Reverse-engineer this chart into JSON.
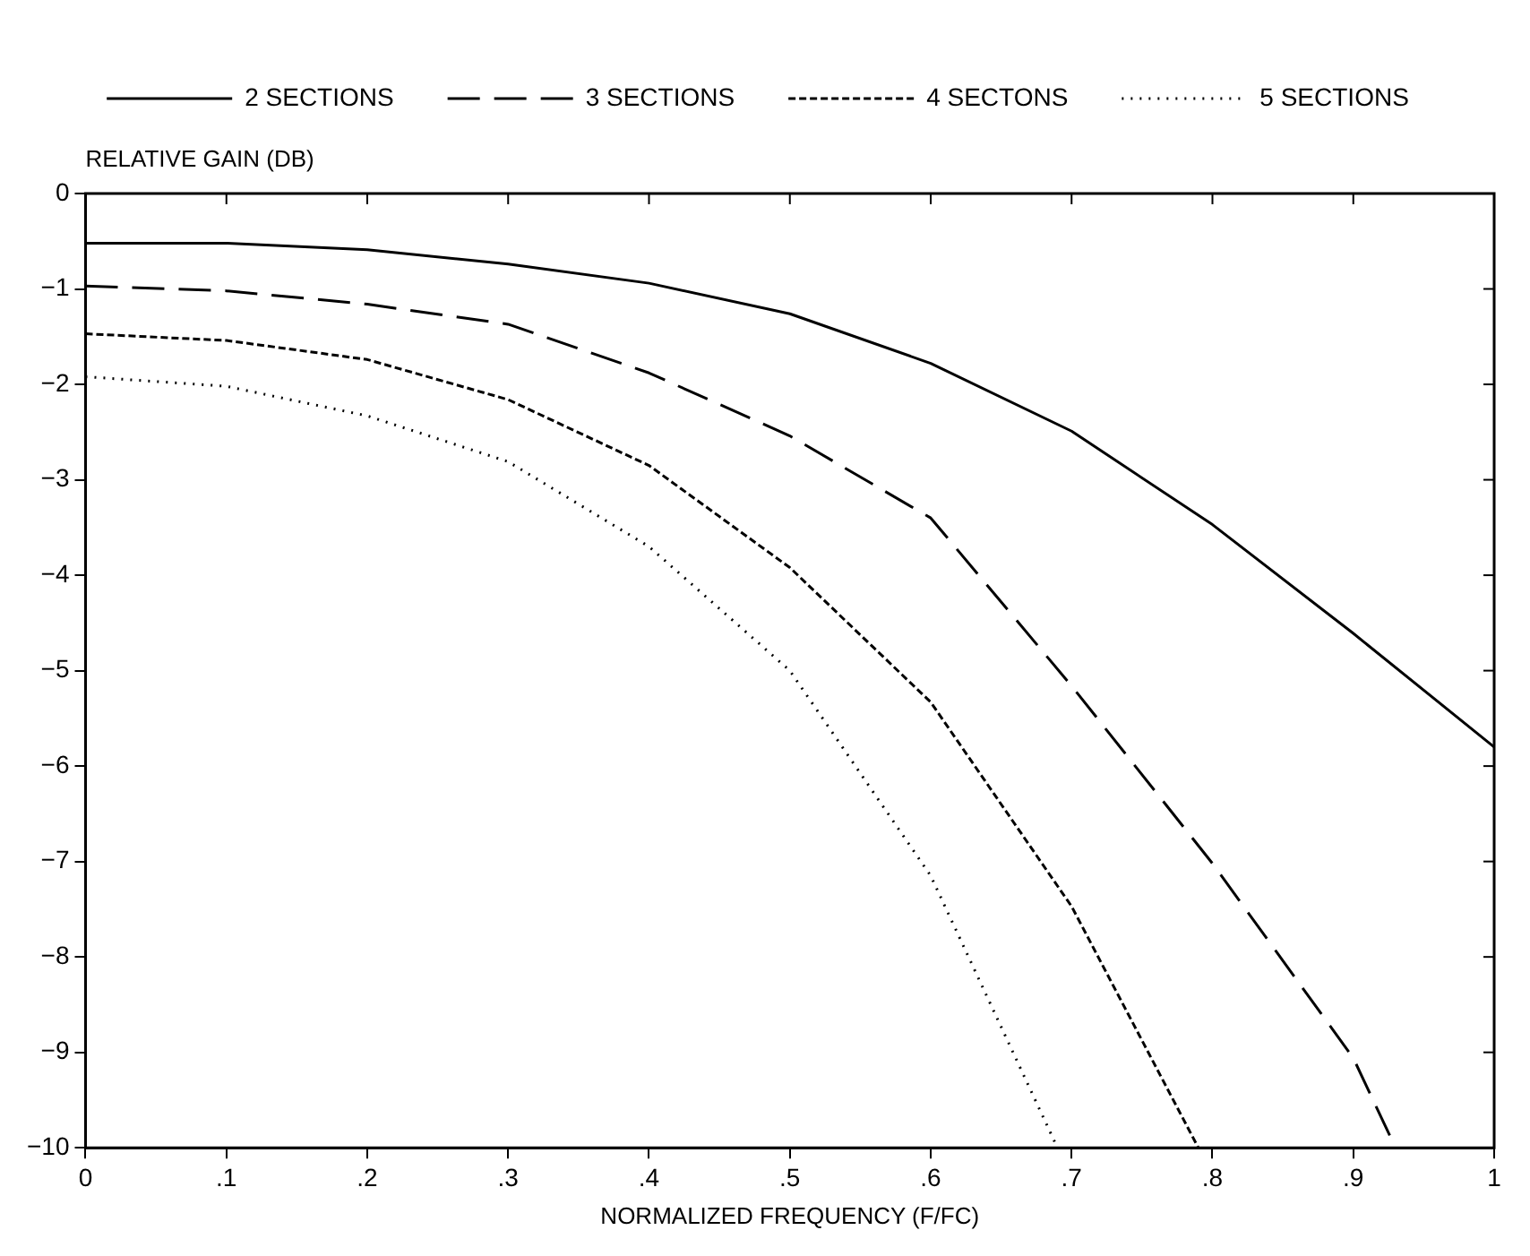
{
  "chart_data": {
    "type": "line",
    "ylabel": "RELATIVE GAIN (DB)",
    "xlabel": "NORMALIZED FREQUENCY (F/FC)",
    "xlim": [
      0,
      1
    ],
    "xticks": [
      {
        "value": 0,
        "label": "0"
      },
      {
        "value": 0.1,
        "label": ".1"
      },
      {
        "value": 0.2,
        "label": ".2"
      },
      {
        "value": 0.3,
        "label": ".3"
      },
      {
        "value": 0.4,
        "label": ".4"
      },
      {
        "value": 0.5,
        "label": ".5"
      },
      {
        "value": 0.6,
        "label": ".6"
      },
      {
        "value": 0.7,
        "label": ".7"
      },
      {
        "value": 0.8,
        "label": ".8"
      },
      {
        "value": 0.9,
        "label": ".9"
      },
      {
        "value": 1,
        "label": "1"
      }
    ],
    "ylim": [
      -10,
      0
    ],
    "yticks": [
      0,
      -1,
      -2,
      -3,
      -4,
      -5,
      -6,
      -7,
      -8,
      -9,
      -10
    ],
    "grid": false,
    "legend": "top",
    "marker": "none",
    "series": [
      {
        "name": "2 SECTIONS",
        "color": "#000000",
        "line_style": "solid",
        "x": [
          0,
          0.1,
          0.2,
          0.3,
          0.4,
          0.5,
          0.6,
          0.7,
          0.8,
          0.9,
          1
        ],
        "values": [
          -0.52,
          -0.52,
          -0.59,
          -0.74,
          -0.94,
          -1.26,
          -1.78,
          -2.49,
          -3.47,
          -4.61,
          -5.8
        ]
      },
      {
        "name": "3 SECTIONS",
        "color": "#000000",
        "line_style": "dashed",
        "x": [
          0,
          0.1,
          0.2,
          0.3,
          0.4,
          0.5,
          0.6,
          0.7,
          0.8,
          0.9,
          0.93
        ],
        "values": [
          -0.97,
          -1.02,
          -1.16,
          -1.37,
          -1.88,
          -2.54,
          -3.4,
          -5.16,
          -7.02,
          -9.06,
          -10
        ]
      },
      {
        "name": "4 SECTONS",
        "color": "#000000",
        "line_style": "dashed",
        "x": [
          0,
          0.1,
          0.2,
          0.3,
          0.4,
          0.5,
          0.6,
          0.7,
          0.79
        ],
        "values": [
          -1.47,
          -1.54,
          -1.74,
          -2.16,
          -2.85,
          -3.92,
          -5.33,
          -7.47,
          -10
        ]
      },
      {
        "name": "5 SECTIONS",
        "color": "#000000",
        "line_style": "dotted",
        "x": [
          0,
          0.1,
          0.2,
          0.3,
          0.4,
          0.5,
          0.6,
          0.69
        ],
        "values": [
          -1.92,
          -2.02,
          -2.33,
          -2.81,
          -3.7,
          -5.0,
          -7.15,
          -10
        ]
      }
    ]
  }
}
